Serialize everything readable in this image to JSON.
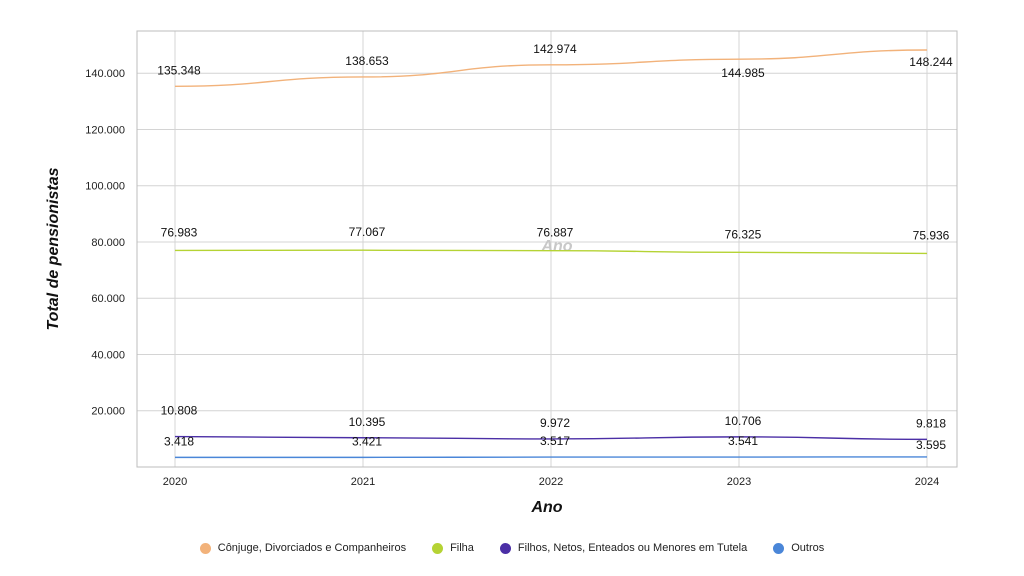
{
  "chart_data": {
    "type": "line",
    "categories": [
      "2020",
      "2021",
      "2022",
      "2023",
      "2024"
    ],
    "xlabel": "Ano",
    "ylabel": "Total de pensionistas",
    "watermark": "Ano",
    "ylim": [
      0,
      155000
    ],
    "yticks": [
      20000,
      40000,
      60000,
      80000,
      100000,
      120000,
      140000
    ],
    "ytick_labels": [
      "20.000",
      "40.000",
      "60.000",
      "80.000",
      "100.000",
      "120.000",
      "140.000"
    ],
    "grid": true,
    "legend_position": "bottom-center",
    "series": [
      {
        "name": "Cônjuge, Divorciados e Companheiros",
        "color": "#f2b27a",
        "values": [
          135348,
          138653,
          142974,
          144985,
          148244
        ],
        "labels": [
          "135.348",
          "138.653",
          "142.974",
          "144.985",
          "148.244"
        ]
      },
      {
        "name": "Filha",
        "color": "#b5d334",
        "values": [
          76983,
          77067,
          76887,
          76325,
          75936
        ],
        "labels": [
          "76.983",
          "77.067",
          "76.887",
          "76.325",
          "75.936"
        ]
      },
      {
        "name": "Filhos, Netos, Enteados ou Menores em Tutela",
        "color": "#4b2fa6",
        "values": [
          10808,
          10395,
          9972,
          10706,
          9818
        ],
        "labels": [
          "10.808",
          "10.395",
          "9.972",
          "10.706",
          "9.818"
        ]
      },
      {
        "name": "Outros",
        "color": "#4a86d8",
        "values": [
          3418,
          3421,
          3517,
          3541,
          3595
        ],
        "labels": [
          "3.418",
          "3.421",
          "3.517",
          "3.541",
          "3.595"
        ]
      }
    ]
  }
}
